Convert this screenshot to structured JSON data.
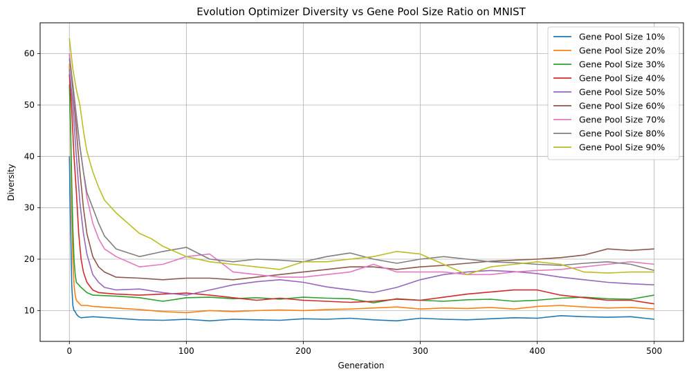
{
  "chart_data": {
    "type": "line",
    "title": "Evolution Optimizer Diversity vs Gene Pool Size Ratio on MNIST",
    "xlabel": "Generation",
    "ylabel": "Diversity",
    "xlim": [
      -25,
      525
    ],
    "ylim": [
      4,
      66
    ],
    "xticks": [
      0,
      100,
      200,
      300,
      400,
      500
    ],
    "yticks": [
      10,
      20,
      30,
      40,
      50,
      60
    ],
    "grid": true,
    "legend_position": "top-right",
    "series": [
      {
        "name": "Gene Pool Size 10%",
        "color": "#1f77b4",
        "x": [
          0,
          1,
          2,
          3,
          4,
          5,
          6,
          8,
          10,
          20,
          40,
          60,
          80,
          100,
          120,
          140,
          160,
          180,
          200,
          220,
          240,
          260,
          280,
          300,
          320,
          340,
          360,
          380,
          400,
          420,
          440,
          460,
          480,
          500
        ],
        "y": [
          40,
          27,
          15,
          11,
          10,
          9.8,
          9.3,
          8.8,
          8.6,
          8.8,
          8.5,
          8.2,
          8.1,
          8.3,
          8.0,
          8.3,
          8.2,
          8.1,
          8.4,
          8.3,
          8.5,
          8.2,
          8.0,
          8.5,
          8.3,
          8.2,
          8.4,
          8.6,
          8.5,
          9.0,
          8.8,
          8.7,
          8.8,
          8.3
        ]
      },
      {
        "name": "Gene Pool Size 20%",
        "color": "#ff7f0e",
        "x": [
          0,
          1,
          2,
          3,
          4,
          5,
          6,
          8,
          10,
          15,
          20,
          40,
          60,
          80,
          100,
          120,
          140,
          160,
          180,
          200,
          220,
          240,
          260,
          280,
          300,
          320,
          340,
          360,
          380,
          400,
          420,
          440,
          460,
          480,
          500
        ],
        "y": [
          58,
          45,
          30,
          20,
          15,
          13,
          12,
          11.5,
          11,
          11,
          10.8,
          10.5,
          10.2,
          9.8,
          9.6,
          10.0,
          9.8,
          10.0,
          10.1,
          10.0,
          10.2,
          10.3,
          10.5,
          10.7,
          10.3,
          10.5,
          10.4,
          10.6,
          10.3,
          10.8,
          11.0,
          10.7,
          10.5,
          10.6,
          10.3
        ]
      },
      {
        "name": "Gene Pool Size 30%",
        "color": "#2ca02c",
        "x": [
          0,
          1,
          2,
          3,
          4,
          5,
          6,
          8,
          10,
          15,
          20,
          40,
          60,
          80,
          100,
          120,
          140,
          160,
          180,
          200,
          220,
          240,
          260,
          280,
          300,
          320,
          340,
          360,
          380,
          400,
          420,
          440,
          460,
          480,
          500
        ],
        "y": [
          54,
          46,
          35,
          26,
          20,
          17,
          15.5,
          15,
          14.5,
          13.5,
          13,
          12.8,
          12.5,
          11.8,
          12.5,
          12.6,
          12.3,
          12.5,
          12.2,
          12.6,
          12.4,
          12.3,
          11.5,
          12.3,
          12.0,
          11.8,
          12.1,
          12.2,
          11.8,
          12.0,
          12.4,
          12.6,
          12.3,
          12.2,
          13.0
        ]
      },
      {
        "name": "Gene Pool Size 40%",
        "color": "#d62728",
        "x": [
          0,
          2,
          4,
          6,
          8,
          10,
          12,
          15,
          20,
          25,
          40,
          60,
          80,
          100,
          120,
          140,
          160,
          180,
          200,
          220,
          240,
          260,
          280,
          300,
          320,
          340,
          360,
          380,
          400,
          420,
          440,
          460,
          480,
          500
        ],
        "y": [
          56,
          49,
          40,
          33,
          25,
          20,
          17.5,
          15.5,
          14,
          13.5,
          13.2,
          13.0,
          13.2,
          13.4,
          13.0,
          12.5,
          12.0,
          12.4,
          12.0,
          11.8,
          11.6,
          11.8,
          12.2,
          12.0,
          12.6,
          13.2,
          13.6,
          14.0,
          14.0,
          13.0,
          12.5,
          12.0,
          12.0,
          11.3
        ]
      },
      {
        "name": "Gene Pool Size 50%",
        "color": "#9467bd",
        "x": [
          0,
          3,
          6,
          9,
          12,
          15,
          20,
          25,
          30,
          40,
          60,
          80,
          100,
          120,
          140,
          160,
          180,
          200,
          220,
          240,
          260,
          280,
          300,
          320,
          340,
          360,
          380,
          400,
          420,
          440,
          460,
          480,
          500
        ],
        "y": [
          57,
          50,
          40,
          31,
          25,
          21,
          17,
          15.5,
          14.5,
          14,
          14.2,
          13.5,
          13.0,
          14.0,
          15.0,
          15.6,
          16.0,
          15.5,
          14.6,
          14.0,
          13.5,
          14.5,
          16.0,
          17.0,
          17.5,
          17.8,
          17.6,
          17.2,
          16.5,
          16.0,
          15.5,
          15.2,
          15.0
        ]
      },
      {
        "name": "Gene Pool Size 60%",
        "color": "#8c564b",
        "x": [
          0,
          3,
          6,
          9,
          12,
          15,
          20,
          25,
          30,
          40,
          60,
          80,
          100,
          120,
          140,
          160,
          180,
          200,
          220,
          240,
          260,
          280,
          300,
          320,
          340,
          360,
          380,
          400,
          420,
          440,
          460,
          480,
          500
        ],
        "y": [
          60,
          53,
          45,
          37,
          30,
          25,
          20.5,
          18.5,
          17.5,
          16.5,
          16.3,
          16.0,
          16.3,
          16.3,
          16.0,
          16.5,
          17.0,
          17.5,
          18.0,
          18.5,
          18.5,
          18.0,
          18.5,
          18.8,
          19.2,
          19.6,
          19.8,
          20.0,
          20.3,
          20.8,
          22.0,
          21.7,
          22.0
        ]
      },
      {
        "name": "Gene Pool Size 70%",
        "color": "#e377c2",
        "x": [
          0,
          3,
          6,
          9,
          12,
          15,
          20,
          25,
          30,
          40,
          60,
          80,
          100,
          120,
          140,
          160,
          180,
          200,
          220,
          240,
          260,
          280,
          300,
          320,
          340,
          360,
          380,
          400,
          420,
          440,
          460,
          480,
          500
        ],
        "y": [
          60,
          54,
          47,
          42,
          37,
          32,
          27,
          24,
          22,
          20.5,
          18.5,
          19.0,
          20.5,
          21.0,
          17.5,
          17.0,
          16.5,
          16.5,
          17.0,
          17.5,
          19.0,
          17.5,
          17.5,
          17.5,
          17.0,
          17.0,
          17.5,
          17.8,
          18.0,
          18.5,
          19.0,
          19.5,
          19.0
        ]
      },
      {
        "name": "Gene Pool Size 80%",
        "color": "#7f7f7f",
        "x": [
          0,
          3,
          6,
          9,
          12,
          15,
          20,
          25,
          30,
          40,
          60,
          80,
          100,
          120,
          140,
          160,
          180,
          200,
          220,
          240,
          260,
          280,
          300,
          320,
          340,
          360,
          380,
          400,
          420,
          440,
          460,
          480,
          500
        ],
        "y": [
          59,
          54,
          48,
          42,
          37,
          33,
          30,
          27,
          24.5,
          22,
          20.5,
          21.5,
          22.3,
          20.0,
          19.5,
          20.0,
          19.8,
          19.5,
          20.5,
          21.2,
          20.0,
          19.2,
          20.0,
          20.5,
          20.0,
          19.5,
          19.3,
          19.0,
          18.8,
          19.2,
          19.5,
          19.0,
          17.8
        ]
      },
      {
        "name": "Gene Pool Size 90%",
        "color": "#bcbd22",
        "x": [
          0,
          3,
          6,
          9,
          12,
          15,
          20,
          25,
          30,
          40,
          50,
          60,
          70,
          80,
          90,
          100,
          120,
          140,
          160,
          180,
          200,
          220,
          240,
          260,
          280,
          300,
          320,
          340,
          360,
          380,
          400,
          420,
          440,
          460,
          480,
          500
        ],
        "y": [
          63,
          57,
          53,
          50,
          45,
          41,
          37,
          34,
          31.5,
          29,
          27,
          25,
          24,
          22.5,
          21.5,
          20.5,
          19.5,
          19.0,
          18.5,
          18.0,
          19.5,
          19.5,
          20.0,
          20.5,
          21.5,
          21.0,
          19.0,
          17.0,
          18.5,
          19.0,
          19.5,
          19.0,
          17.5,
          17.3,
          17.5,
          17.5
        ]
      }
    ]
  }
}
